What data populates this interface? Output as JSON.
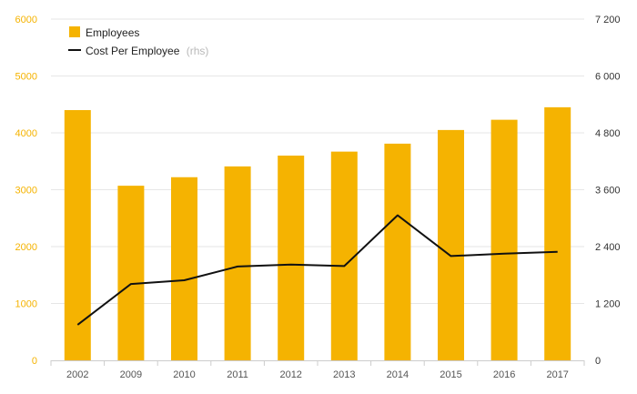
{
  "colors": {
    "bar": "#f5b301",
    "line": "#111111",
    "grid": "#e6e6e6",
    "axis": "#cccccc"
  },
  "legend": {
    "employees_label": "Employees",
    "cost_label": "Cost Per Employee",
    "cost_suffix": "(rhs)"
  },
  "chart_data": {
    "type": "bar",
    "categories": [
      "2002",
      "2009",
      "2010",
      "2011",
      "2012",
      "2013",
      "2014",
      "2015",
      "2016",
      "2017"
    ],
    "series": [
      {
        "name": "Employees",
        "type": "bar",
        "axis": "left",
        "values": [
          4400,
          3070,
          3220,
          3410,
          3600,
          3670,
          3810,
          4050,
          4230,
          4450
        ]
      },
      {
        "name": "Cost Per Employee",
        "type": "line",
        "axis": "right",
        "values": [
          750,
          1610,
          1690,
          1980,
          2020,
          1990,
          3060,
          2200,
          2250,
          2290
        ]
      }
    ],
    "y_left": {
      "range": [
        0,
        6000
      ],
      "ticks": [
        "0",
        "1000",
        "2000",
        "3000",
        "4000",
        "5000",
        "6000"
      ]
    },
    "y_right": {
      "range": [
        0,
        7200
      ],
      "ticks": [
        "0",
        "1 200",
        "2 400",
        "3 600",
        "4 800",
        "6 000",
        "7 200"
      ]
    },
    "grid": true,
    "legend_position": "top-left"
  }
}
